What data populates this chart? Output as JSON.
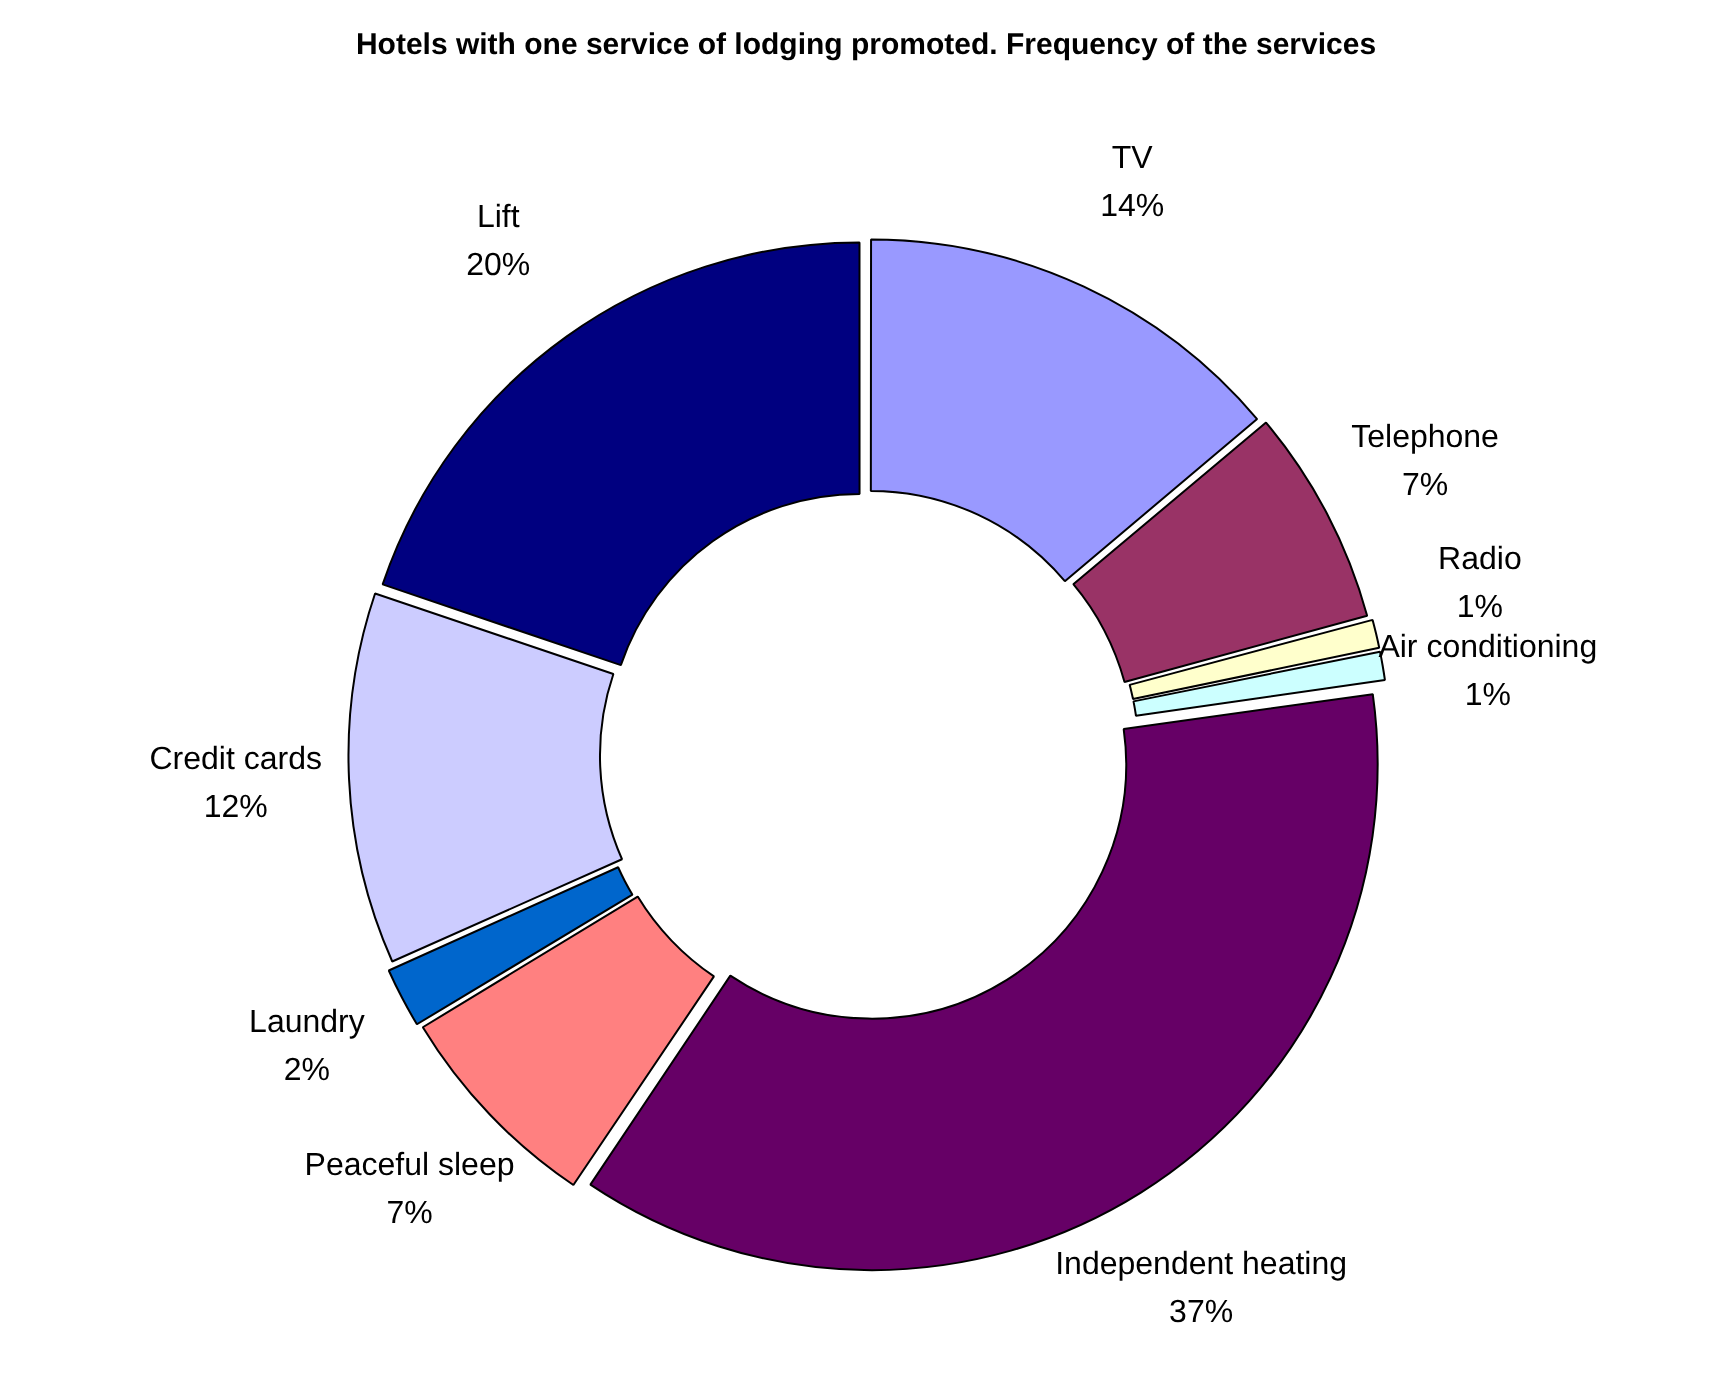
{
  "chart_data": {
    "type": "donut",
    "title": "Hotels with one service of lodging promoted. Frequency of the services",
    "categories": [
      "TV",
      "Telephone",
      "Radio",
      "Air conditioning",
      "Independent heating",
      "Peaceful sleep",
      "Laundry",
      "Credit cards",
      "Lift"
    ],
    "values": [
      14,
      7,
      1,
      1,
      37,
      7,
      2,
      12,
      20
    ],
    "colors": [
      "#9999ff",
      "#993366",
      "#ffffcc",
      "#ccffff",
      "#660066",
      "#ff8080",
      "#0066cc",
      "#ccccff",
      "#000080"
    ],
    "value_labels": [
      "14%",
      "7%",
      "1%",
      "1%",
      "37%",
      "7%",
      "2%",
      "12%",
      "20%"
    ],
    "legend": false
  }
}
